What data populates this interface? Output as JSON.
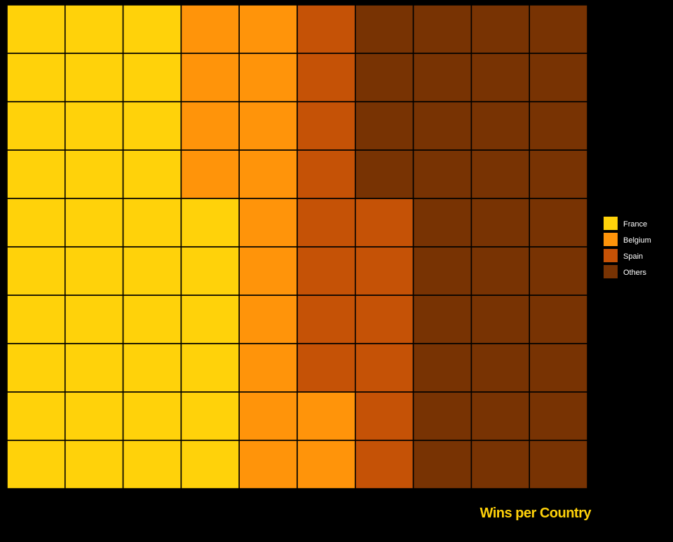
{
  "chart_data": {
    "type": "waffle",
    "caption": "Wins per Country",
    "grid_rows": 10,
    "grid_cols": 10,
    "fill_order": "column-wise, bottom-to-top then left-to-right",
    "categories": [
      "France",
      "Belgium",
      "Spain",
      "Others"
    ],
    "values": [
      36,
      16,
      14,
      34
    ],
    "colors": [
      "#ffd20a",
      "#ff940a",
      "#c55206",
      "#783303"
    ],
    "legend_position": "right",
    "background": "#000000"
  }
}
